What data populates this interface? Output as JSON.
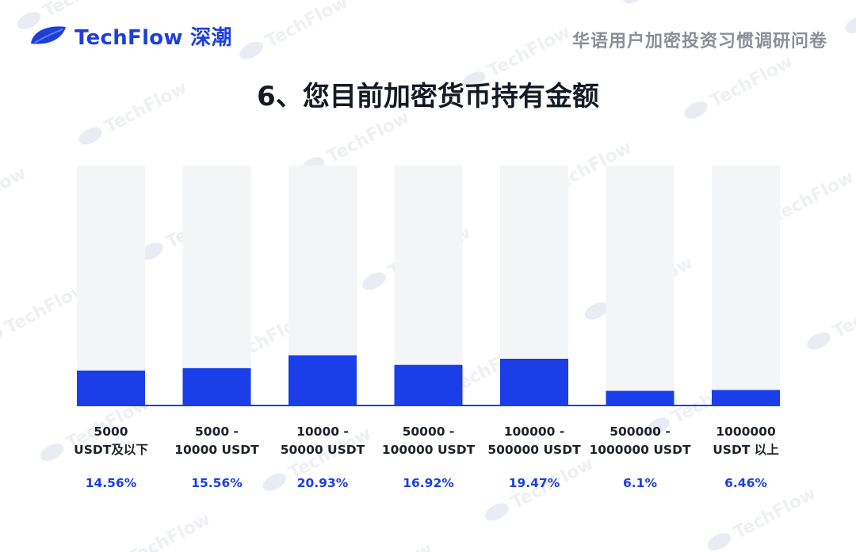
{
  "header": {
    "brand": "TechFlow 深潮",
    "survey_title": "华语用户加密投资习惯调研问卷"
  },
  "colors": {
    "bar": "#1a3ee8",
    "track": "#f4f5f7",
    "axis": "#1a3ee8",
    "value_label": "#1a3ee8",
    "category_label": "#1e222b"
  },
  "chart_data": {
    "type": "bar",
    "title": "6、您目前加密货币持有金额",
    "categories": [
      [
        "5000",
        "USDT及以下"
      ],
      [
        "5000 -",
        "10000 USDT"
      ],
      [
        "10000 -",
        "50000 USDT"
      ],
      [
        "50000 -",
        "100000 USDT"
      ],
      [
        "100000 -",
        "500000 USDT"
      ],
      [
        "500000 -",
        "1000000 USDT"
      ],
      [
        "1000000",
        "USDT 以上"
      ]
    ],
    "values": [
      14.56,
      15.56,
      20.93,
      16.92,
      19.47,
      6.1,
      6.46
    ],
    "value_labels": [
      "14.56%",
      "15.56%",
      "20.93%",
      "16.92%",
      "19.47%",
      "6.1%",
      "6.46%"
    ],
    "unit": "%",
    "ylim": [
      0,
      100
    ],
    "grid": false,
    "legend": "none"
  }
}
